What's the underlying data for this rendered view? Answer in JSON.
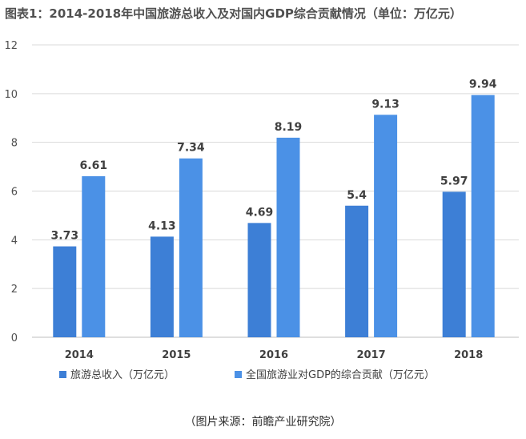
{
  "colors": {
    "series1": "#3d7fd6",
    "series2": "#4b91e6",
    "grid": "#d9d9d9",
    "axis": "#bfbfbf"
  },
  "source_note": "（图片来源：前瞻产业研究院）",
  "chart_data": {
    "type": "bar",
    "title": "图表1：2014-2018年中国旅游总收入及对国内GDP综合贡献情况（单位：万亿元）",
    "categories": [
      "2014",
      "2015",
      "2016",
      "2017",
      "2018"
    ],
    "series": [
      {
        "name": "旅游总收入（万亿元）",
        "values": [
          3.73,
          4.13,
          4.69,
          5.4,
          5.97
        ],
        "labels": [
          "3.73",
          "4.13",
          "4.69",
          "5.4",
          "5.97"
        ]
      },
      {
        "name": "全国旅游业对GDP的综合贡献（万亿元）",
        "values": [
          6.61,
          7.34,
          8.19,
          9.13,
          9.94
        ],
        "labels": [
          "6.61",
          "7.34",
          "8.19",
          "9.13",
          "9.94"
        ]
      }
    ],
    "ylim": [
      0,
      12
    ],
    "yticks": [
      "0",
      "2",
      "4",
      "6",
      "8",
      "10",
      "12"
    ],
    "grid": true,
    "legend": "bottom"
  }
}
